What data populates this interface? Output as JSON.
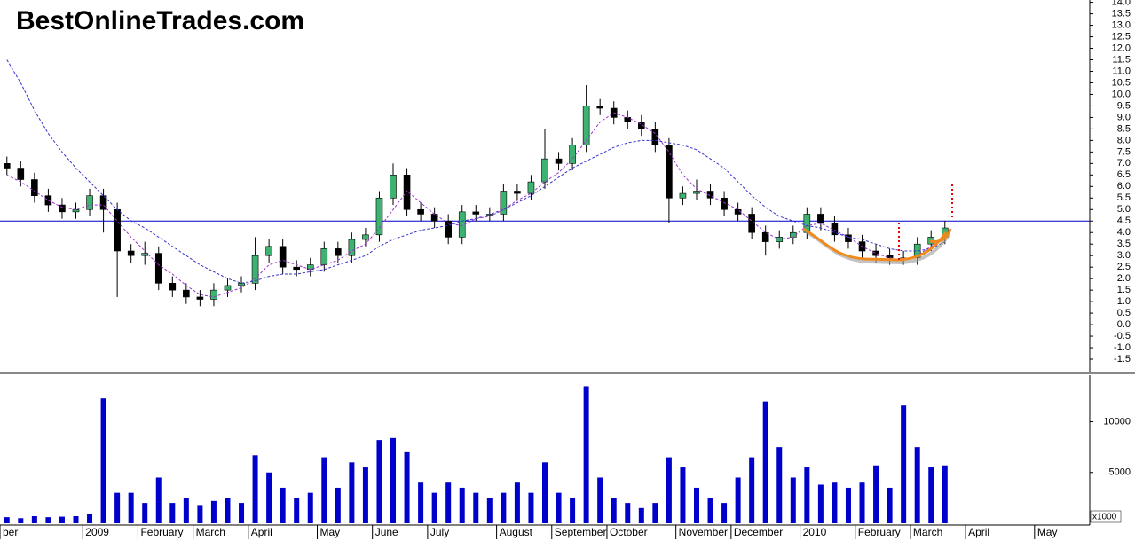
{
  "chart_data": [
    {
      "type": "candlestick",
      "title": "BestOnlineTrades.com",
      "categories": [
        "ber",
        null,
        null,
        null,
        null,
        null,
        "2009",
        null,
        null,
        null,
        "February",
        null,
        null,
        null,
        "March",
        null,
        null,
        null,
        "April",
        null,
        null,
        null,
        null,
        "May",
        null,
        null,
        null,
        "June",
        null,
        null,
        null,
        "July",
        null,
        null,
        null,
        null,
        "August",
        null,
        null,
        null,
        "September",
        null,
        null,
        null,
        "October",
        null,
        null,
        null,
        null,
        "November",
        null,
        null,
        null,
        "December",
        null,
        null,
        null,
        null,
        "2010",
        null,
        null,
        null,
        "February",
        null,
        null,
        null,
        "March",
        null,
        null,
        null,
        "April",
        null,
        null,
        null,
        null,
        "May",
        null,
        null,
        null
      ],
      "open": [
        7.0,
        6.8,
        6.3,
        5.6,
        5.2,
        4.9,
        5.0,
        5.6,
        5.0,
        3.2,
        3.0,
        3.1,
        1.8,
        1.5,
        1.2,
        1.1,
        1.5,
        1.7,
        1.8,
        3.0,
        3.4,
        2.5,
        2.4,
        2.6,
        3.3,
        3.0,
        3.7,
        3.9,
        5.5,
        6.5,
        5.0,
        4.8,
        4.5,
        3.8,
        4.9,
        4.8,
        4.8,
        5.8,
        5.7,
        6.2,
        7.2,
        7.0,
        7.8,
        9.5,
        9.4,
        9.0,
        8.8,
        8.5,
        7.8,
        5.5,
        5.7,
        5.8,
        5.5,
        5.0,
        4.8,
        4.0,
        3.6,
        3.8,
        4.0,
        4.8,
        4.4,
        3.9,
        3.6,
        3.2,
        3.0,
        2.9,
        2.9,
        3.5,
        3.8,
        null,
        null,
        null,
        null,
        null,
        null,
        null,
        null,
        null,
        null
      ],
      "high": [
        7.3,
        7.1,
        6.6,
        5.9,
        5.5,
        5.3,
        5.9,
        5.9,
        5.3,
        3.5,
        3.6,
        3.4,
        2.1,
        1.8,
        1.5,
        1.8,
        2.0,
        2.1,
        3.8,
        3.7,
        3.7,
        2.8,
        2.9,
        3.6,
        3.6,
        4.0,
        4.2,
        5.8,
        7.0,
        6.8,
        5.3,
        5.1,
        4.8,
        5.2,
        5.2,
        5.1,
        6.1,
        6.1,
        6.5,
        8.5,
        7.5,
        8.1,
        10.4,
        9.8,
        9.7,
        9.3,
        9.1,
        8.8,
        8.1,
        6.0,
        6.3,
        6.1,
        5.8,
        5.3,
        5.1,
        4.3,
        4.1,
        4.3,
        5.1,
        5.1,
        4.7,
        4.2,
        3.9,
        3.5,
        3.3,
        3.2,
        3.8,
        4.1,
        4.5,
        null,
        null,
        null,
        null,
        null,
        null,
        null,
        null,
        null,
        null
      ],
      "low": [
        6.5,
        6.0,
        5.3,
        4.9,
        4.6,
        4.6,
        4.7,
        4.0,
        1.2,
        2.7,
        2.6,
        1.5,
        1.2,
        0.9,
        0.8,
        0.8,
        1.2,
        1.4,
        1.5,
        2.7,
        2.2,
        2.1,
        2.1,
        2.3,
        2.7,
        2.7,
        3.4,
        3.6,
        5.2,
        4.7,
        4.5,
        4.2,
        3.5,
        3.5,
        4.5,
        4.5,
        4.5,
        5.4,
        5.4,
        5.9,
        6.7,
        6.7,
        7.5,
        9.1,
        8.7,
        8.5,
        8.2,
        7.5,
        4.4,
        5.2,
        5.4,
        5.2,
        4.7,
        4.5,
        3.7,
        3.0,
        3.3,
        3.5,
        3.7,
        4.1,
        3.6,
        3.3,
        2.9,
        2.7,
        2.6,
        2.6,
        2.6,
        3.2,
        3.5,
        null,
        null,
        null,
        null,
        null,
        null,
        null,
        null,
        null,
        null
      ],
      "close": [
        6.8,
        6.3,
        5.6,
        5.2,
        4.9,
        5.0,
        5.6,
        5.0,
        3.2,
        3.0,
        3.1,
        1.8,
        1.5,
        1.2,
        1.1,
        1.5,
        1.7,
        1.8,
        3.0,
        3.4,
        2.5,
        2.4,
        2.6,
        3.3,
        3.0,
        3.7,
        3.9,
        5.5,
        6.5,
        5.0,
        4.8,
        4.5,
        3.8,
        4.9,
        4.8,
        4.8,
        5.8,
        5.7,
        6.2,
        7.2,
        7.0,
        7.8,
        9.5,
        9.4,
        9.0,
        8.8,
        8.5,
        7.8,
        5.5,
        5.7,
        5.8,
        5.5,
        5.0,
        4.8,
        4.0,
        3.6,
        3.8,
        4.0,
        4.8,
        4.4,
        3.9,
        3.6,
        3.2,
        3.0,
        2.9,
        2.9,
        3.5,
        3.8,
        4.2,
        null,
        null,
        null,
        null,
        null,
        null,
        null,
        null,
        null,
        null
      ],
      "up_color": "#3cb371",
      "down_color": "#000000",
      "series": [
        {
          "color": "#9933cc",
          "values": [
            6.5,
            6.2,
            5.8,
            5.4,
            5.1,
            5.0,
            5.2,
            5.2,
            4.5,
            3.8,
            3.2,
            2.6,
            2.2,
            1.7,
            1.3,
            1.2,
            1.4,
            1.6,
            2.0,
            2.6,
            2.8,
            2.6,
            2.4,
            2.6,
            2.8,
            3.2,
            3.5,
            4.2,
            5.0,
            5.8,
            5.3,
            4.8,
            4.4,
            4.3,
            4.6,
            4.7,
            5.0,
            5.4,
            5.7,
            6.2,
            6.6,
            7.2,
            8.0,
            8.8,
            9.2,
            9.0,
            8.7,
            8.3,
            7.5,
            6.5,
            5.9,
            5.6,
            5.3,
            5.0,
            4.5,
            4.0,
            3.7,
            3.8,
            4.3,
            4.4,
            4.1,
            3.8,
            3.4,
            3.1,
            2.9,
            2.8,
            3.0,
            3.4,
            3.8,
            null,
            null,
            null,
            null,
            null,
            null,
            null,
            null,
            null,
            null
          ]
        },
        {
          "color": "#3333cc",
          "values": [
            11.5,
            10.5,
            9.3,
            8.3,
            7.5,
            6.8,
            6.2,
            5.6,
            5.0,
            4.5,
            4.2,
            3.8,
            3.4,
            3.0,
            2.6,
            2.3,
            2.0,
            1.8,
            1.9,
            2.1,
            2.2,
            2.2,
            2.3,
            2.4,
            2.6,
            2.8,
            3.0,
            3.4,
            3.7,
            3.9,
            4.1,
            4.2,
            4.3,
            4.5,
            4.6,
            4.8,
            5.0,
            5.3,
            5.6,
            6.0,
            6.4,
            6.8,
            7.1,
            7.4,
            7.7,
            7.9,
            8.0,
            8.0,
            7.9,
            7.8,
            7.6,
            7.2,
            6.8,
            6.2,
            5.6,
            5.1,
            4.7,
            4.5,
            4.3,
            4.2,
            4.0,
            3.8,
            3.7,
            3.5,
            3.3,
            3.2,
            3.2,
            3.3,
            3.6,
            null,
            null,
            null,
            null,
            null,
            null,
            null,
            null,
            null,
            null
          ]
        }
      ],
      "hline": 4.5,
      "hline_color": "#0000cc",
      "ylim": [
        -2.0,
        14.1
      ],
      "yticks": [
        {
          "value": 14,
          "label": "14.0"
        },
        {
          "value": 13.5,
          "label": "13.5"
        },
        {
          "value": 13,
          "label": "13.0"
        },
        {
          "value": 12.5,
          "label": "12.5"
        },
        {
          "value": 12,
          "label": "12.0"
        },
        {
          "value": 11.5,
          "label": "11.5"
        },
        {
          "value": 11,
          "label": "11.0"
        },
        {
          "value": 10.5,
          "label": "10.5"
        },
        {
          "value": 10,
          "label": "10.0"
        },
        {
          "value": 9.5,
          "label": "9.5"
        },
        {
          "value": 9,
          "label": "9.0"
        },
        {
          "value": 8.5,
          "label": "8.5"
        },
        {
          "value": 8,
          "label": "8.0"
        },
        {
          "value": 7.5,
          "label": "7.5"
        },
        {
          "value": 7,
          "label": "7.0"
        },
        {
          "value": 6.5,
          "label": "6.5"
        },
        {
          "value": 6,
          "label": "6.0"
        },
        {
          "value": 5.5,
          "label": "5.5"
        },
        {
          "value": 5,
          "label": "5.0"
        },
        {
          "value": 4.5,
          "label": "4.5"
        },
        {
          "value": 4,
          "label": "4.0"
        },
        {
          "value": 3.5,
          "label": "3.5"
        },
        {
          "value": 3,
          "label": "3.0"
        },
        {
          "value": 2.5,
          "label": "2.5"
        },
        {
          "value": 2,
          "label": "2.0"
        },
        {
          "value": 1.5,
          "label": "1.5"
        },
        {
          "value": 1,
          "label": "1.0"
        },
        {
          "value": 0.5,
          "label": "0.5"
        },
        {
          "value": 0,
          "label": "0.0"
        },
        {
          "value": -0.5,
          "label": "-0.5"
        },
        {
          "value": -1,
          "label": "-1.0"
        },
        {
          "value": -1.5,
          "label": "-1.5"
        }
      ]
    },
    {
      "type": "bar",
      "unit_label": "x1000",
      "color": "#0000cc",
      "values": [
        600,
        500,
        700,
        600,
        650,
        700,
        900,
        12300,
        3000,
        3000,
        2000,
        4500,
        2000,
        2500,
        1800,
        2200,
        2500,
        2000,
        6700,
        5000,
        3500,
        2500,
        3000,
        6500,
        3500,
        6000,
        5500,
        8200,
        8400,
        7000,
        4000,
        3000,
        4000,
        3500,
        3000,
        2500,
        3000,
        4000,
        3000,
        6000,
        3000,
        2500,
        13500,
        4500,
        2500,
        2000,
        1500,
        2000,
        6500,
        5500,
        3500,
        2500,
        2000,
        4500,
        6500,
        12000,
        7500,
        4500,
        5500,
        3800,
        4000,
        3500,
        4000,
        5700,
        3500,
        11600,
        7500,
        5500,
        5700,
        null,
        null,
        null,
        null,
        null,
        null,
        null,
        null,
        null,
        null
      ],
      "ylim": [
        0,
        14500
      ],
      "yticks": [
        5000,
        10000
      ]
    }
  ]
}
